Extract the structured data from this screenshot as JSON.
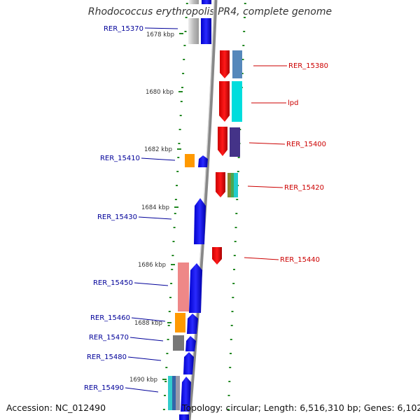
{
  "title": "Rhodococcus erythropolis PR4, complete genome",
  "footer": {
    "accession": "Accession: NC_012490",
    "topology": "Topology: circular; Length: 6,516,310 bp; Genes: 6,102"
  },
  "colors": {
    "forward_label": "#cc0000",
    "reverse_label": "#000099",
    "tick": "#228822",
    "backbone": "#888888"
  },
  "scale_ticks": [
    "1678 kbp",
    "1680 kbp",
    "1682 kbp",
    "1684 kbp",
    "1686 kbp",
    "1688 kbp",
    "1690 kbp"
  ],
  "gene_labels": {
    "reverse": [
      "RER_15370",
      "RER_15410",
      "RER_15430",
      "RER_15450",
      "RER_15460",
      "RER_15470",
      "RER_15480",
      "RER_15490"
    ],
    "forward": [
      "RER_15380",
      "lpd",
      "RER_15400",
      "RER_15420",
      "RER_15440"
    ]
  }
}
